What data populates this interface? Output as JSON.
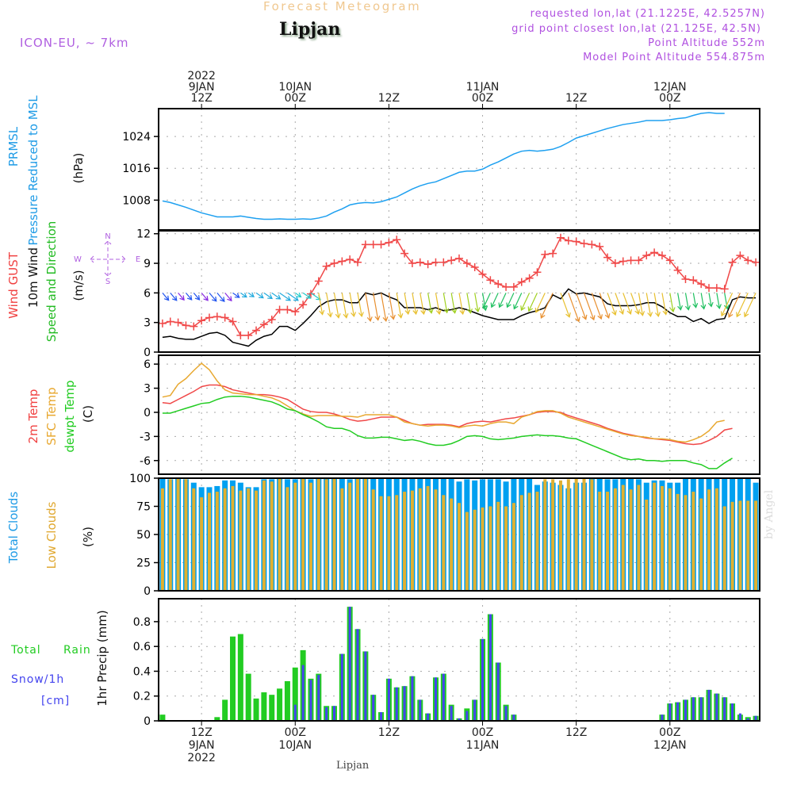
{
  "header": {
    "title": "Forecast Meteogram",
    "location": "Lipjan",
    "model": "ICON-EU, ~ 7km",
    "requested": "requested lon,lat (21.1225E, 42.5257N)",
    "grid_point": "grid point closest lon,lat (21.125E, 42.5N)",
    "point_altitude": "Point Altitude 552m",
    "model_altitude": "Model Point Altitude 554.875m"
  },
  "footer": {
    "location": "Lipjan",
    "watermark": "by Angel"
  },
  "time_axis": {
    "unit": "hours since 9JAN2022 00Z",
    "range": [
      6.5,
      83.5
    ],
    "top_ticks": [
      {
        "h": 12,
        "lines": [
          "2022",
          "9JAN",
          "12Z"
        ]
      },
      {
        "h": 24,
        "lines": [
          "10JAN",
          "00Z"
        ]
      },
      {
        "h": 36,
        "lines": [
          "12Z"
        ]
      },
      {
        "h": 48,
        "lines": [
          "11JAN",
          "00Z"
        ]
      },
      {
        "h": 60,
        "lines": [
          "12Z"
        ]
      },
      {
        "h": 72,
        "lines": [
          "12JAN",
          "00Z"
        ]
      }
    ],
    "bottom_ticks": [
      {
        "h": 12,
        "lines": [
          "12Z",
          "9JAN",
          "2022"
        ]
      },
      {
        "h": 24,
        "lines": [
          "00Z",
          "10JAN"
        ]
      },
      {
        "h": 36,
        "lines": [
          "12Z"
        ]
      },
      {
        "h": 48,
        "lines": [
          "00Z",
          "11JAN"
        ]
      },
      {
        "h": 60,
        "lines": [
          "12Z"
        ]
      },
      {
        "h": 72,
        "lines": [
          "00Z",
          "12JAN"
        ]
      }
    ]
  },
  "chart_data": [
    {
      "type": "line",
      "id": "pressure",
      "labels": [
        {
          "text": "PRMSL",
          "color": "#1e9be6"
        },
        {
          "text": "Pressure Reduced to MSL",
          "color": "#1e9be6"
        }
      ],
      "ylabel": "(hPa)",
      "ylim": [
        1000.5,
        1031
      ],
      "yticks": [
        1008,
        1016,
        1024
      ],
      "grid": true,
      "x_start": 7,
      "series": [
        {
          "name": "PRMSL",
          "color": "#1ea0f0",
          "values": [
            1007.8,
            1007.4,
            1006.8,
            1006.2,
            1005.5,
            1004.8,
            1004.3,
            1003.8,
            1003.8,
            1003.8,
            1004.0,
            1003.7,
            1003.4,
            1003.2,
            1003.2,
            1003.3,
            1003.2,
            1003.2,
            1003.3,
            1003.2,
            1003.5,
            1004.0,
            1005.0,
            1005.8,
            1006.8,
            1007.2,
            1007.4,
            1007.3,
            1007.6,
            1008.2,
            1008.8,
            1009.8,
            1010.8,
            1011.6,
            1012.2,
            1012.6,
            1013.4,
            1014.2,
            1015.0,
            1015.3,
            1015.3,
            1015.8,
            1016.8,
            1017.6,
            1018.6,
            1019.6,
            1020.3,
            1020.5,
            1020.3,
            1020.5,
            1020.8,
            1021.5,
            1022.5,
            1023.6,
            1024.2,
            1024.8,
            1025.4,
            1026.0,
            1026.5,
            1027.0,
            1027.3,
            1027.6,
            1028.0,
            1028.0,
            1028.0,
            1028.2,
            1028.5,
            1028.7,
            1029.3,
            1029.8,
            1030.0,
            1029.8,
            1029.8
          ]
        }
      ]
    },
    {
      "type": "line",
      "id": "wind",
      "labels": [
        {
          "text": "Wind GUST",
          "color": "#f04040"
        },
        {
          "text": "10m Wind",
          "color": "#111111"
        },
        {
          "text": "Speed and Direction",
          "color": "#22bb22"
        }
      ],
      "ylabel": "(m/s)",
      "compass": {
        "n": "N",
        "s": "S",
        "w": "W",
        "e": "E"
      },
      "ylim": [
        0,
        12.3
      ],
      "yticks": [
        0,
        3,
        6,
        9,
        12
      ],
      "grid": true,
      "x_start": 7,
      "series": [
        {
          "name": "Wind GUST",
          "color": "#f04848",
          "marker": "+",
          "values": [
            2.9,
            3.1,
            3.0,
            2.7,
            2.6,
            3.2,
            3.5,
            3.6,
            3.5,
            3.1,
            1.7,
            1.7,
            2.2,
            2.8,
            3.3,
            4.3,
            4.3,
            4.1,
            4.8,
            5.9,
            7.2,
            8.7,
            9.0,
            9.2,
            9.4,
            9.1,
            10.9,
            10.9,
            10.9,
            11.1,
            11.4,
            10.0,
            9.0,
            9.1,
            8.9,
            9.1,
            9.1,
            9.3,
            9.5,
            9.0,
            8.6,
            7.9,
            7.3,
            6.9,
            6.6,
            6.6,
            7.1,
            7.5,
            8.1,
            9.9,
            10.0,
            11.6,
            11.3,
            11.2,
            11.0,
            10.9,
            10.7,
            9.6,
            9.0,
            9.2,
            9.3,
            9.3,
            9.8,
            10.1,
            9.8,
            9.3,
            8.3,
            7.4,
            7.3,
            6.9,
            6.5,
            6.5,
            6.4,
            9.1,
            9.8,
            9.3,
            9.1
          ]
        },
        {
          "name": "10m Wind",
          "color": "#000000",
          "values": [
            1.5,
            1.6,
            1.4,
            1.3,
            1.3,
            1.6,
            1.9,
            2.0,
            1.7,
            1.0,
            0.8,
            0.6,
            1.2,
            1.6,
            1.8,
            2.6,
            2.6,
            2.2,
            2.9,
            3.7,
            4.6,
            5.1,
            5.3,
            5.3,
            5.0,
            5.0,
            6.0,
            5.8,
            6.0,
            5.6,
            5.3,
            4.5,
            4.5,
            4.5,
            4.3,
            4.5,
            4.2,
            4.3,
            4.5,
            4.3,
            4.0,
            3.7,
            3.5,
            3.3,
            3.3,
            3.3,
            3.7,
            4.0,
            4.2,
            4.5,
            5.8,
            5.4,
            6.4,
            5.9,
            6.0,
            5.8,
            5.6,
            4.9,
            4.7,
            4.7,
            4.7,
            4.8,
            5.0,
            5.0,
            4.6,
            4.0,
            3.6,
            3.6,
            3.1,
            3.4,
            2.9,
            3.3,
            3.4,
            5.3,
            5.6,
            5.5,
            5.5
          ]
        },
        {
          "name": "Wind direction arrows",
          "from_direction_deg": "NW→N→NE progression",
          "note": "arrows plotted along 6 m/s line, colored by speed"
        }
      ]
    },
    {
      "type": "line",
      "id": "temperature",
      "labels": [
        {
          "text": "2m Temp",
          "color": "#f04040"
        },
        {
          "text": "SFC Temp",
          "color": "#e8a830"
        },
        {
          "text": "dewpt Temp",
          "color": "#22cc22"
        },
        {
          "text": "(C)",
          "color": "#111111"
        }
      ],
      "ylim": [
        -7.7,
        7.1
      ],
      "yticks": [
        -6,
        -3,
        0,
        3,
        6
      ],
      "grid": true,
      "x_start": 7,
      "series": [
        {
          "name": "2m Temp",
          "color": "#f04848",
          "values": [
            1.2,
            1.1,
            1.6,
            2.1,
            2.6,
            3.2,
            3.4,
            3.4,
            3.2,
            2.8,
            2.6,
            2.4,
            2.2,
            2.2,
            2.1,
            1.9,
            1.6,
            1.0,
            0.4,
            0.1,
            0.0,
            0.0,
            -0.2,
            -0.5,
            -0.9,
            -1.1,
            -1.0,
            -0.8,
            -0.6,
            -0.6,
            -0.6,
            -1.0,
            -1.4,
            -1.6,
            -1.5,
            -1.5,
            -1.5,
            -1.6,
            -1.8,
            -1.4,
            -1.2,
            -1.1,
            -1.2,
            -1.0,
            -0.8,
            -0.7,
            -0.5,
            -0.3,
            0.0,
            0.1,
            0.1,
            0.0,
            -0.4,
            -0.7,
            -1.0,
            -1.3,
            -1.6,
            -2.0,
            -2.3,
            -2.6,
            -2.8,
            -3.0,
            -3.2,
            -3.3,
            -3.4,
            -3.5,
            -3.7,
            -3.9,
            -4.0,
            -3.9,
            -3.5,
            -3.0,
            -2.2,
            -2.0
          ]
        },
        {
          "name": "SFC Temp",
          "color": "#e8a830",
          "values": [
            1.9,
            2.1,
            3.5,
            4.2,
            5.2,
            6.1,
            5.3,
            3.9,
            2.8,
            2.4,
            2.3,
            2.2,
            2.2,
            2.0,
            1.8,
            1.4,
            0.8,
            0.2,
            -0.2,
            -0.5,
            -0.4,
            -0.4,
            -0.4,
            -0.5,
            -0.5,
            -0.6,
            -0.3,
            -0.3,
            -0.3,
            -0.3,
            -0.6,
            -1.2,
            -1.4,
            -1.6,
            -1.7,
            -1.6,
            -1.6,
            -1.7,
            -1.9,
            -1.7,
            -1.6,
            -1.7,
            -1.4,
            -1.2,
            -1.2,
            -1.4,
            -0.6,
            -0.3,
            0.1,
            0.2,
            0.2,
            -0.1,
            -0.6,
            -0.9,
            -1.2,
            -1.5,
            -1.8,
            -2.1,
            -2.4,
            -2.7,
            -2.9,
            -3.0,
            -3.1,
            -3.3,
            -3.3,
            -3.4,
            -3.6,
            -3.7,
            -3.4,
            -3.0,
            -2.3,
            -1.2,
            -1.0
          ]
        },
        {
          "name": "dewpt Temp",
          "color": "#22cc22",
          "values": [
            -0.1,
            -0.1,
            0.2,
            0.5,
            0.8,
            1.1,
            1.2,
            1.6,
            1.9,
            2.0,
            2.0,
            1.9,
            1.7,
            1.5,
            1.3,
            0.9,
            0.4,
            0.2,
            -0.3,
            -0.7,
            -1.2,
            -1.8,
            -2.0,
            -2.0,
            -2.3,
            -2.9,
            -3.2,
            -3.2,
            -3.1,
            -3.1,
            -3.3,
            -3.5,
            -3.4,
            -3.6,
            -3.9,
            -4.1,
            -4.1,
            -3.9,
            -3.5,
            -3.0,
            -2.9,
            -3.0,
            -3.3,
            -3.4,
            -3.3,
            -3.2,
            -3.0,
            -2.9,
            -2.8,
            -2.9,
            -2.9,
            -3.0,
            -3.2,
            -3.3,
            -3.7,
            -4.1,
            -4.5,
            -4.9,
            -5.3,
            -5.7,
            -5.9,
            -5.8,
            -6.0,
            -6.0,
            -6.1,
            -6.0,
            -6.0,
            -6.0,
            -6.3,
            -6.5,
            -7.0,
            -7.0,
            -6.3,
            -5.7
          ]
        }
      ]
    },
    {
      "type": "bar",
      "id": "clouds",
      "labels": [
        {
          "text": "Total Clouds",
          "color": "#1e9be6"
        },
        {
          "text": "Low Clouds",
          "color": "#e0a830"
        }
      ],
      "ylabel": "(%)",
      "ylim": [
        0,
        100
      ],
      "yticks": [
        0,
        25,
        50,
        75,
        100
      ],
      "grid": true,
      "x_start": 7,
      "series": [
        {
          "name": "Total Clouds",
          "color": "#00a0f0",
          "values": [
            100,
            99,
            100,
            99,
            96,
            92,
            92,
            93,
            98,
            98,
            96,
            92,
            92,
            99,
            99,
            100,
            99,
            99,
            100,
            99,
            100,
            100,
            100,
            100,
            99,
            100,
            100,
            100,
            100,
            100,
            100,
            100,
            100,
            100,
            100,
            100,
            100,
            100,
            97,
            99,
            98,
            99,
            99,
            99,
            97,
            100,
            100,
            100,
            94,
            97,
            96,
            94,
            91,
            96,
            96,
            100,
            100,
            99,
            99,
            100,
            100,
            99,
            96,
            98,
            98,
            96,
            96,
            100,
            100,
            100,
            100,
            100,
            100,
            100,
            100,
            100,
            96
          ]
        },
        {
          "name": "Low Clouds",
          "color": "#e0b030",
          "values": [
            91,
            99,
            100,
            99,
            91,
            83,
            87,
            88,
            91,
            93,
            89,
            91,
            89,
            98,
            97,
            100,
            92,
            96,
            100,
            96,
            100,
            99,
            100,
            91,
            96,
            100,
            100,
            90,
            84,
            84,
            85,
            88,
            89,
            91,
            93,
            90,
            85,
            82,
            78,
            70,
            72,
            74,
            75,
            79,
            75,
            78,
            85,
            87,
            88,
            99,
            99,
            98,
            99,
            100,
            100,
            99,
            88,
            88,
            91,
            94,
            90,
            94,
            81,
            96,
            93,
            91,
            86,
            85,
            88,
            82,
            90,
            91,
            75,
            79,
            80,
            80,
            80
          ]
        }
      ]
    },
    {
      "type": "bar",
      "id": "precip",
      "labels": [
        {
          "text": "Total Rain",
          "color": "#22cc22"
        },
        {
          "text": "Snow/1h",
          "color": "#4444ee"
        },
        {
          "text": "[cm]",
          "color": "#4444ee"
        }
      ],
      "ylabel": "1hr Precip (mm)",
      "ylim": [
        0,
        0.985
      ],
      "yticks": [
        0,
        0.2,
        0.4,
        0.6,
        0.8
      ],
      "ytick_labels": [
        "0",
        "0.2",
        "0.4",
        "0.6",
        "0.8"
      ],
      "grid": true,
      "x_start": 7,
      "series": [
        {
          "name": "Total Rain",
          "color": "#22cc22",
          "values": [
            0.05,
            0,
            0,
            0,
            0,
            0,
            0,
            0.03,
            0.17,
            0.68,
            0.7,
            0.38,
            0.18,
            0.23,
            0.21,
            0.26,
            0.32,
            0.43,
            0.57,
            0.34,
            0.38,
            0.12,
            0.12,
            0.54,
            0.92,
            0.74,
            0.56,
            0.21,
            0.07,
            0.34,
            0.27,
            0.28,
            0.36,
            0.17,
            0.06,
            0.35,
            0.38,
            0.13,
            0.02,
            0.1,
            0.17,
            0.66,
            0.86,
            0.47,
            0.13,
            0.05,
            0,
            0,
            0,
            0,
            0,
            0,
            0,
            0,
            0,
            0,
            0,
            0,
            0,
            0,
            0,
            0,
            0,
            0,
            0.05,
            0.14,
            0.15,
            0.17,
            0.19,
            0.19,
            0.25,
            0.22,
            0.19,
            0.14,
            0.05,
            0.03,
            0.04
          ]
        },
        {
          "name": "Snow/1h",
          "color": "#4444ee",
          "values": [
            0,
            0,
            0,
            0,
            0,
            0,
            0,
            0,
            0,
            0,
            0,
            0,
            0,
            0,
            0,
            0,
            0,
            0.13,
            0.45,
            0.33,
            0.37,
            0.11,
            0.12,
            0.54,
            0.92,
            0.74,
            0.56,
            0.21,
            0.07,
            0.34,
            0.27,
            0.28,
            0.36,
            0.17,
            0.06,
            0.35,
            0.38,
            0.12,
            0.02,
            0.08,
            0.17,
            0.66,
            0.86,
            0.47,
            0.12,
            0.05,
            0,
            0,
            0,
            0,
            0,
            0,
            0,
            0,
            0,
            0,
            0,
            0,
            0,
            0,
            0,
            0,
            0,
            0,
            0.05,
            0.14,
            0.15,
            0.17,
            0.19,
            0.19,
            0.25,
            0.22,
            0.19,
            0.14,
            0.06,
            0.02,
            0.04
          ]
        }
      ]
    }
  ]
}
